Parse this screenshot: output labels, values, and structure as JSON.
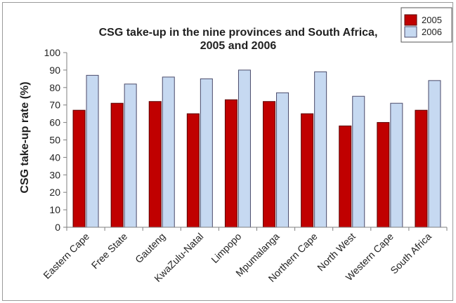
{
  "chart_data": {
    "type": "bar",
    "title": "CSG take-up in the nine provinces and South Africa,",
    "subtitle": "2005 and 2006",
    "xlabel": "",
    "ylabel": "CSG take-up rate (%)",
    "ylim": [
      0,
      100
    ],
    "yticks": [
      0,
      10,
      20,
      30,
      40,
      50,
      60,
      70,
      80,
      90,
      100
    ],
    "grid": false,
    "legend_position": "top-right",
    "categories": [
      "Eastern Cape",
      "Free State",
      "Gauteng",
      "KwaZulu-Natal",
      "Limpopo",
      "Mpumalanga",
      "Northern Cape",
      "North West",
      "Western Cape",
      "South Africa"
    ],
    "series": [
      {
        "name": "2005",
        "color": "#c00000",
        "stroke": "#5a0000",
        "values": [
          67,
          71,
          72,
          65,
          73,
          72,
          65,
          58,
          60,
          67
        ]
      },
      {
        "name": "2006",
        "color": "#c6d9f1",
        "stroke": "#4a4a6a",
        "values": [
          87,
          82,
          86,
          85,
          90,
          77,
          89,
          75,
          71,
          84
        ]
      }
    ]
  }
}
